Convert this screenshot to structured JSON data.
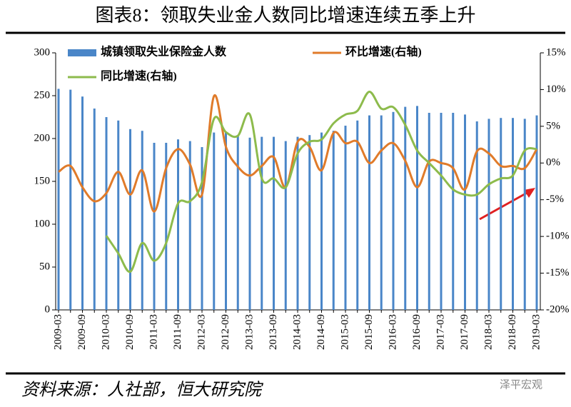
{
  "chart_data": {
    "type": "bar_line",
    "title": "图表8：领取失业金人数同比增速连续五季上升",
    "source": "资料来源：人社部，恒大研究院",
    "watermark": "泽平宏观",
    "categories": [
      "2009-03",
      null,
      "2009-09",
      null,
      "2010-03",
      null,
      "2010-09",
      null,
      "2011-03",
      null,
      "2011-09",
      null,
      "2012-03",
      null,
      "2012-09",
      null,
      "2013-03",
      null,
      "2013-09",
      null,
      "2014-03",
      null,
      "2014-09",
      null,
      "2015-03",
      null,
      "2015-09",
      null,
      "2016-03",
      null,
      "2016-09",
      null,
      "2017-03",
      null,
      "2017-09",
      null,
      "2018-03",
      null,
      "2018-09",
      null,
      "2019-03"
    ],
    "series": [
      {
        "name": "城镇领取失业保险金人数",
        "color": "#4a86c8",
        "axis": "y",
        "values": [
          258,
          257,
          249,
          235,
          225,
          221,
          211,
          209,
          195,
          195,
          199,
          197,
          190,
          207,
          208,
          204,
          201,
          202,
          202,
          197,
          202,
          204,
          207,
          209,
          215,
          221,
          227,
          227,
          231,
          237,
          238,
          230,
          230,
          230,
          228,
          220,
          223,
          224,
          224,
          223,
          227
        ]
      },
      {
        "name": "环比增速(右轴)",
        "color": "#e07b2a",
        "axis": "y2",
        "values": [
          -1.2,
          -0.4,
          -3.3,
          -5.2,
          -4.1,
          -1.2,
          -4.3,
          -1,
          -6.6,
          -0.7,
          1.9,
          -0.2,
          -4.3,
          9.1,
          2.2,
          -0.5,
          -1.7,
          -0.4,
          0.8,
          -3.3,
          2.9,
          2.2,
          -1,
          4.1,
          2.7,
          2.9,
          0,
          1.7,
          2.7,
          0.3,
          -3.3,
          0.2,
          0,
          -0.7,
          -3.6,
          1.6,
          1.3,
          -0.4,
          -0.4,
          -0.7,
          1.9
        ]
      },
      {
        "name": "同比增速(右轴)",
        "color": "#8dbb4c",
        "axis": "y2",
        "values": [
          null,
          null,
          null,
          null,
          -9.9,
          -12.3,
          -14.8,
          -10.9,
          -13.3,
          -10.9,
          -5.5,
          -5.2,
          -2.6,
          6.0,
          4.2,
          3.7,
          6.6,
          -2.1,
          -2.1,
          -3.3,
          1.3,
          2.9,
          3.2,
          5.4,
          6.6,
          7.1,
          9.7,
          7.4,
          7.6,
          5.2,
          1.7,
          0,
          -1.7,
          -3.6,
          -4.3,
          -4.3,
          -2.9,
          -2.1,
          -1.7,
          1.7,
          1.9
        ]
      }
    ],
    "ylim": [
      0,
      300
    ],
    "yticks": [
      0,
      50,
      100,
      150,
      200,
      250,
      300
    ],
    "y2lim": [
      -20,
      15
    ],
    "y2ticks": [
      {
        "value": -20,
        "label": "-20%"
      },
      {
        "value": -15,
        "label": "-15%"
      },
      {
        "value": -10,
        "label": "-10%"
      },
      {
        "value": -5,
        "label": "-5%"
      },
      {
        "value": 0,
        "label": "0%"
      },
      {
        "value": 5,
        "label": "5%"
      },
      {
        "value": 10,
        "label": "10%"
      },
      {
        "value": 15,
        "label": "15%"
      }
    ]
  }
}
